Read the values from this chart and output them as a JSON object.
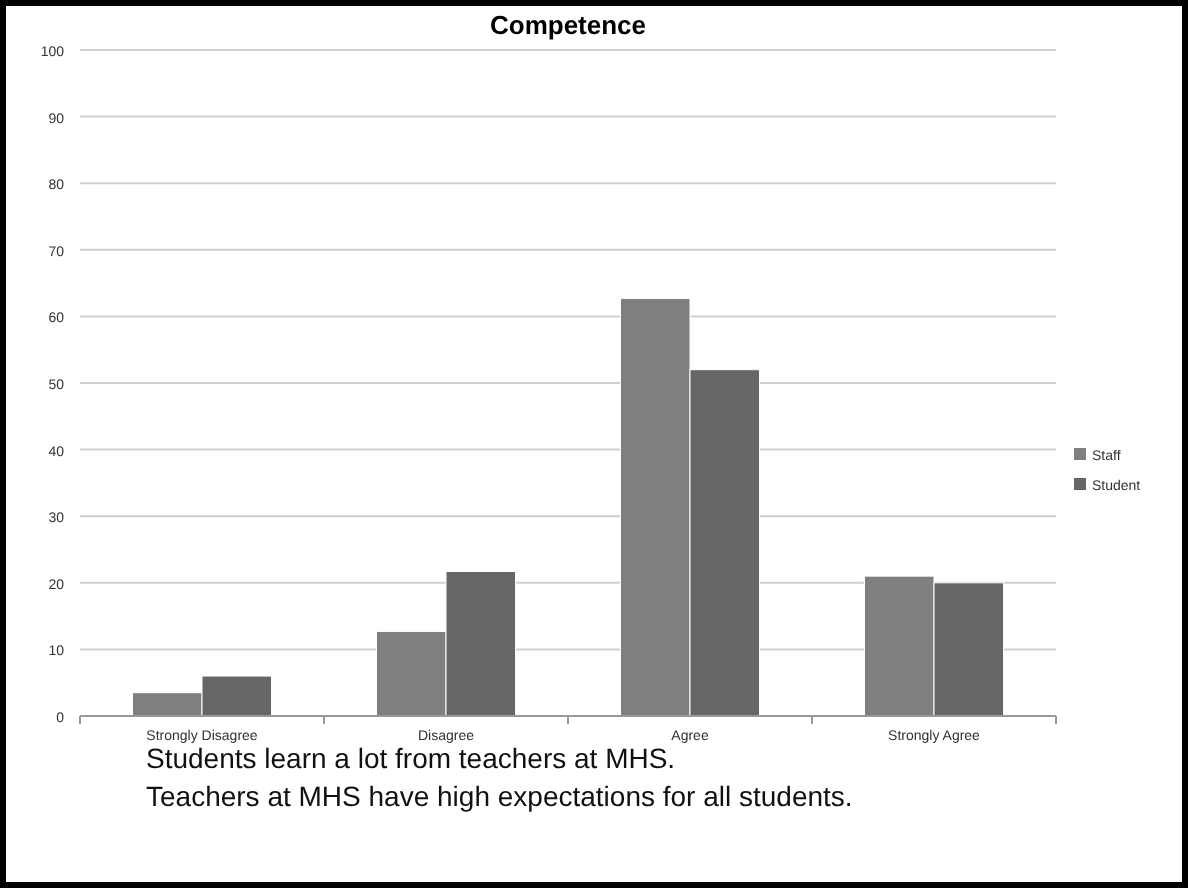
{
  "chart_data": {
    "type": "bar",
    "title": "Competence",
    "categories": [
      "Strongly Disagree",
      "Disagree",
      "Agree",
      "Strongly Agree"
    ],
    "series": [
      {
        "name": "Staff",
        "color": "#7f7f7f",
        "values": [
          3.5,
          12.7,
          62.7,
          21
        ]
      },
      {
        "name": "Student",
        "color": "#666666",
        "values": [
          6,
          21.7,
          52,
          20
        ]
      }
    ],
    "ylim": [
      0,
      100
    ],
    "yticks": [
      0,
      10,
      20,
      30,
      40,
      50,
      60,
      70,
      80,
      90,
      100
    ],
    "grid": "y",
    "legend": "right",
    "annotations": [
      "Students learn a lot from teachers at MHS.",
      "Teachers at MHS have high expectations for all students."
    ]
  }
}
